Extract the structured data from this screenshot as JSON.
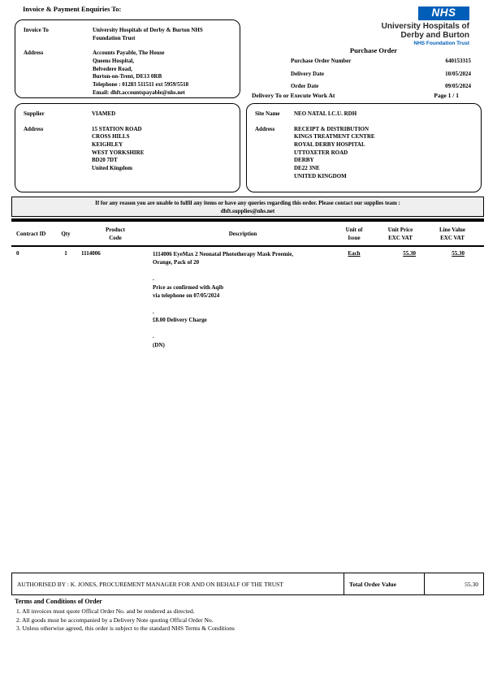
{
  "colors": {
    "nhs_blue": "#005EB8",
    "notice_bg": "#efefef"
  },
  "header": {
    "enquiries_label": "Invoice & Payment Enquiries To:",
    "po_title": "Purchase Order",
    "page_label": "Page 1 / 1"
  },
  "nhs_logo": {
    "nhs_text": "NHS",
    "org_line1": "University Hospitals of",
    "org_line2": "Derby and Burton",
    "foundation_line": "NHS Foundation Trust"
  },
  "invoice_box": {
    "invoice_to_label": "Invoice To",
    "invoice_to_value": "University Hospitals of Derby & Burton NHS\nFoundation Trust",
    "address_label": "Address",
    "address_lines": [
      "Accounts Payable, The House",
      "Queens Hospital,",
      "Belvedere Road,",
      "Burton-on-Trent, DE13 0RB",
      "Telephone : 01283 511511 ext 5959/5518",
      "Email: dhft.accountspayable@nhs.net"
    ]
  },
  "order_meta": {
    "rows": [
      {
        "label": "Purchase Order Number",
        "value": "640153315"
      },
      {
        "label": "Delivery Date",
        "value": "10/05/2024"
      },
      {
        "label": "Order Date",
        "value": "09/05/2024"
      }
    ],
    "delivery_to_label": "Delivery To or Execute Work At"
  },
  "supplier_box": {
    "supplier_label": "Supplier",
    "supplier_value": "VIAMED",
    "address_label": "Address",
    "address_lines": [
      "15 STATION ROAD",
      "CROSS HILLS",
      "KEIGHLEY",
      "WEST YORKSHIRE",
      "BD20 7DT",
      "United Kingdom"
    ]
  },
  "site_box": {
    "site_label": "Site Name",
    "site_value": "NEO NATAL I.C.U. RDH",
    "address_label": "Address",
    "address_lines": [
      "RECEIPT & DISTRIBUTION",
      "KINGS TREATMENT CENTRE",
      "ROYAL DERBY HOSPITAL",
      "UTTOXETER ROAD",
      "DERBY",
      "DE22 3NE",
      "UNITED KINGDOM"
    ]
  },
  "notice": {
    "line1": "If for any reason you are unable to fulfil any items or have any queries regarding this order.  Please contact our supplies team :",
    "line2": "dhft.supplies@nhs.net"
  },
  "table": {
    "headers": [
      "Contract ID",
      "Qty",
      "Product\nCode",
      "Description",
      "Unit of\nIssue",
      "Unit Price\nEXC VAT",
      "Line Value\nEXC VAT"
    ],
    "row": {
      "contract_id": "0",
      "qty": "1",
      "product_code": "1114006",
      "description": "1114006 EyeMax 2 Neonatal Phototherapy Mask Preemie,\nOrange, Pack of 20\n\n.\nPrice as confirmed with Aqib\nvia telephone on 07/05/2024\n\n.\n£8.00 Delivery Charge\n\n.\n(DN)",
      "unit_of_issue": "Each",
      "unit_price": "55.30",
      "line_value": "55.30"
    }
  },
  "authorised": {
    "text": "AUTHORISED BY : K. JONES, PROCUREMENT MANAGER FOR AND ON BEHALF OF THE TRUST",
    "total_label": "Total Order Value",
    "total_value": "55.30"
  },
  "terms": {
    "heading": "Terms and Conditions of Order",
    "items": [
      "1. All invoices must quote Offical Order No. and be rendered as directed.",
      "2. All goods must be accompanied by a Delivery Note quoting Offical Order No.",
      "3. Unless otherwise agreed, this order is subject to the standard NHS Terms & Conditions"
    ]
  }
}
